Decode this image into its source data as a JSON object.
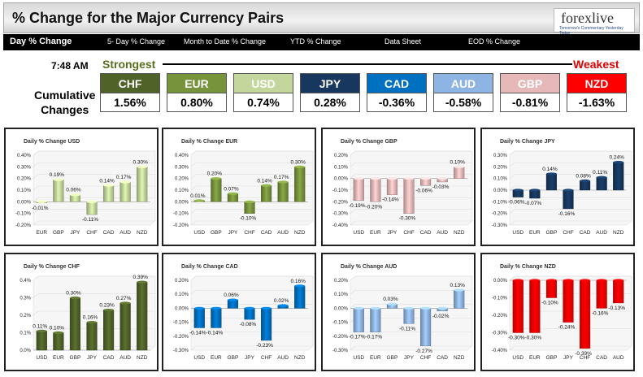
{
  "header": {
    "title": "% Change for the Major Currency Pairs",
    "logo_text": "forexlive",
    "logo_tagline": "Tomorrow's Commentary Yesterday Today"
  },
  "nav": {
    "items": [
      "Day % Change",
      "5- Day % Change",
      "Month to Date % Change",
      "YTD % Change",
      "Data Sheet",
      "EOD % Change"
    ],
    "active": "Day % Change"
  },
  "summary": {
    "time": "7:48 AM",
    "strongest_label": "Strongest",
    "weakest_label": "Weakest",
    "cumulative_label_line1": "Cumulative",
    "cumulative_label_line2": "Changes",
    "currencies": [
      {
        "code": "CHF",
        "value": "1.56%",
        "color": "#4f6228"
      },
      {
        "code": "EUR",
        "value": "0.80%",
        "color": "#77933c"
      },
      {
        "code": "USD",
        "value": "0.74%",
        "color": "#c3d69b",
        "text_color": "#222222"
      },
      {
        "code": "JPY",
        "value": "0.28%",
        "color": "#17375e"
      },
      {
        "code": "CAD",
        "value": "-0.36%",
        "color": "#0070c0"
      },
      {
        "code": "AUD",
        "value": "-0.58%",
        "color": "#8eb4e3",
        "text_color": "#222222"
      },
      {
        "code": "GBP",
        "value": "-0.81%",
        "color": "#e6b9b8",
        "text_color": "#222222"
      },
      {
        "code": "NZD",
        "value": "-1.63%",
        "color": "#ff0000"
      }
    ]
  },
  "chart_data": [
    {
      "type": "bar",
      "title": "Daily % Change USD",
      "categories": [
        "EUR",
        "GBP",
        "JPY",
        "CHF",
        "CAD",
        "AUD",
        "NZD"
      ],
      "values": [
        -0.01,
        0.19,
        0.06,
        -0.11,
        0.14,
        0.17,
        0.3
      ],
      "labels": [
        "-0.01%",
        "0.19%",
        "0.06%",
        "-0.11%",
        "0.14%",
        "0.17%",
        "0.30%"
      ],
      "ylim": [
        -0.2,
        0.4
      ],
      "ticks": [
        "-0.20%",
        "-0.10%",
        "0.00%",
        "0.10%",
        "0.20%",
        "0.30%",
        "0.40%"
      ],
      "tick_vals": [
        -0.2,
        -0.1,
        0,
        0.1,
        0.2,
        0.3,
        0.4
      ],
      "color": "#c3d69b"
    },
    {
      "type": "bar",
      "title": "Daily % Change EUR",
      "categories": [
        "USD",
        "GBP",
        "JPY",
        "CHF",
        "CAD",
        "AUD",
        "NZD"
      ],
      "values": [
        0.01,
        0.2,
        0.07,
        -0.1,
        0.14,
        0.17,
        0.3
      ],
      "labels": [
        "0.01%",
        "0.20%",
        "0.07%",
        "-0.10%",
        "0.14%",
        "0.17%",
        "0.30%"
      ],
      "ylim": [
        -0.2,
        0.4
      ],
      "ticks": [
        "-0.20%",
        "-0.10%",
        "0.00%",
        "0.10%",
        "0.20%",
        "0.30%",
        "0.40%"
      ],
      "tick_vals": [
        -0.2,
        -0.1,
        0,
        0.1,
        0.2,
        0.3,
        0.4
      ],
      "color": "#77933c"
    },
    {
      "type": "bar",
      "title": "Daily % Change GBP",
      "categories": [
        "USD",
        "EUR",
        "JPY",
        "CHF",
        "CAD",
        "AUD",
        "NZD"
      ],
      "values": [
        -0.19,
        -0.2,
        -0.14,
        -0.3,
        -0.06,
        -0.03,
        0.1
      ],
      "labels": [
        "-0.19%",
        "-0.20%",
        "-0.14%",
        "-0.30%",
        "-0.06%",
        "-0.03%",
        "0.10%"
      ],
      "ylim": [
        -0.4,
        0.2
      ],
      "ticks": [
        "-0.40%",
        "-0.30%",
        "-0.20%",
        "-0.10%",
        "0.00%",
        "0.10%",
        "0.20%"
      ],
      "tick_vals": [
        -0.4,
        -0.3,
        -0.2,
        -0.1,
        0,
        0.1,
        0.2
      ],
      "color": "#e6b9b8"
    },
    {
      "type": "bar",
      "title": "Daily % Change JPY",
      "categories": [
        "USD",
        "EUR",
        "GBP",
        "CHF",
        "CAD",
        "AUD",
        "NZD"
      ],
      "values": [
        -0.06,
        -0.07,
        0.14,
        -0.16,
        0.08,
        0.11,
        0.24
      ],
      "labels": [
        "-0.06%",
        "-0.07%",
        "0.14%",
        "-0.16%",
        "0.08%",
        "0.11%",
        "0.24%"
      ],
      "ylim": [
        -0.3,
        0.3
      ],
      "ticks": [
        "-0.30%",
        "-0.20%",
        "-0.10%",
        "0.00%",
        "0.10%",
        "0.20%",
        "0.30%"
      ],
      "tick_vals": [
        -0.3,
        -0.2,
        -0.1,
        0,
        0.1,
        0.2,
        0.3
      ],
      "color": "#17375e"
    },
    {
      "type": "bar",
      "title": "Daily % Change CHF",
      "categories": [
        "USD",
        "EUR",
        "GBP",
        "JPY",
        "CAD",
        "AUD",
        "NZD"
      ],
      "values": [
        0.11,
        0.1,
        0.3,
        0.16,
        0.23,
        0.27,
        0.39
      ],
      "labels": [
        "0.11%",
        "0.10%",
        "0.30%",
        "0.16%",
        "0.23%",
        "0.27%",
        "0.39%"
      ],
      "ylim": [
        0.0,
        0.4
      ],
      "ticks": [
        "0.0%",
        "0.1%",
        "0.2%",
        "0.3%",
        "0.4%"
      ],
      "tick_vals": [
        0,
        0.1,
        0.2,
        0.3,
        0.4
      ],
      "color": "#4f6228"
    },
    {
      "type": "bar",
      "title": "Daily % Change CAD",
      "categories": [
        "USD",
        "EUR",
        "GBP",
        "JPY",
        "CHF",
        "AUD",
        "NZD"
      ],
      "values": [
        -0.14,
        -0.14,
        0.06,
        -0.08,
        -0.23,
        0.02,
        0.16
      ],
      "labels": [
        "-0.14%",
        "-0.14%",
        "0.06%",
        "-0.08%",
        "-0.23%",
        "0.02%",
        "0.16%"
      ],
      "ylim": [
        -0.3,
        0.2
      ],
      "ticks": [
        "-0.30%",
        "-0.20%",
        "-0.10%",
        "0.00%",
        "0.10%",
        "0.20%"
      ],
      "tick_vals": [
        -0.3,
        -0.2,
        -0.1,
        0,
        0.1,
        0.2
      ],
      "color": "#0070c0"
    },
    {
      "type": "bar",
      "title": "Daily % Change AUD",
      "categories": [
        "USD",
        "EUR",
        "GBP",
        "JPY",
        "CHF",
        "CAD",
        "NZD"
      ],
      "values": [
        -0.17,
        -0.17,
        0.03,
        -0.11,
        -0.27,
        -0.02,
        0.13
      ],
      "labels": [
        "-0.17%",
        "-0.17%",
        "0.03%",
        "-0.11%",
        "-0.27%",
        "-0.02%",
        "0.13%"
      ],
      "ylim": [
        -0.3,
        0.2
      ],
      "ticks": [
        "-0.30%",
        "-0.20%",
        "-0.10%",
        "0.00%",
        "0.10%",
        "0.20%"
      ],
      "tick_vals": [
        -0.3,
        -0.2,
        -0.1,
        0,
        0.1,
        0.2
      ],
      "color": "#8eb4e3"
    },
    {
      "type": "bar",
      "title": "Daily % Change NZD",
      "categories": [
        "USD",
        "EUR",
        "GBP",
        "JPY",
        "CHF",
        "CAD",
        "AUD"
      ],
      "values": [
        -0.3,
        -0.3,
        -0.1,
        -0.24,
        -0.39,
        -0.16,
        -0.13
      ],
      "labels": [
        "-0.30%",
        "-0.30%",
        "-0.10%",
        "-0.24%",
        "-0.39%",
        "-0.16%",
        "-0.13%"
      ],
      "ylim": [
        -0.4,
        0.0
      ],
      "ticks": [
        "-0.40%",
        "-0.30%",
        "-0.20%",
        "-0.10%",
        "0.00%"
      ],
      "tick_vals": [
        -0.4,
        -0.3,
        -0.2,
        -0.1,
        0
      ],
      "color": "#ff0000"
    }
  ]
}
